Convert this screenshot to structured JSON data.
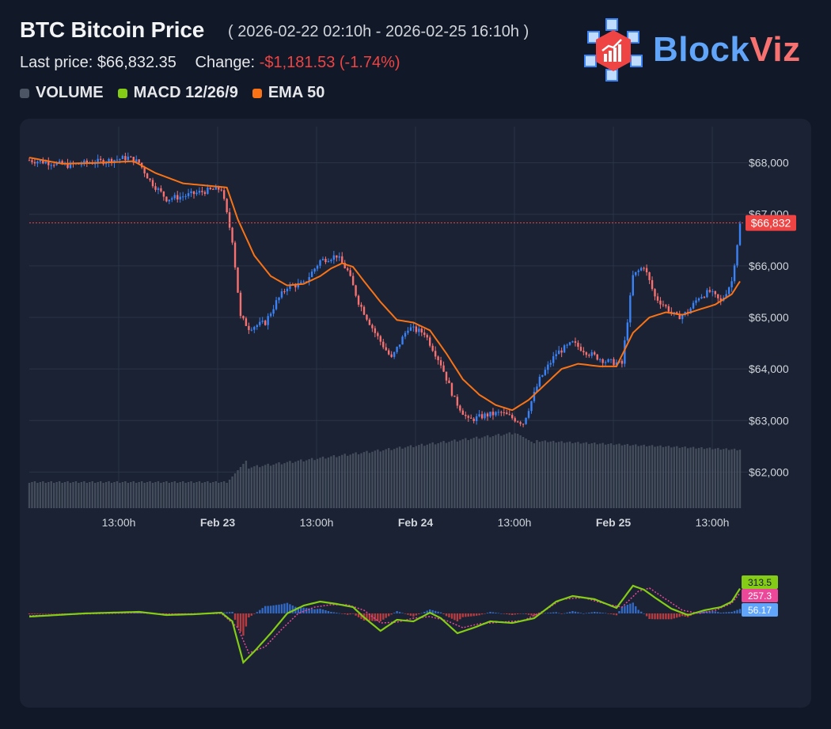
{
  "header": {
    "title": "BTC Bitcoin Price",
    "range": "( 2026-02-22 02:10h - 2026-02-25 16:10h )",
    "last_price_label": "Last price:",
    "last_price": "$66,832.35",
    "change_label": "Change:",
    "change_value": "-$1,181.53 (-1.74%)"
  },
  "legend": [
    {
      "label": "VOLUME",
      "color": "#4b5563"
    },
    {
      "label": "MACD 12/26/9",
      "color": "#84cc16"
    },
    {
      "label": "EMA 50",
      "color": "#f97316"
    }
  ],
  "logo": {
    "part1": "Block",
    "part2": "Viz"
  },
  "chart_data": [
    {
      "type": "candlestick",
      "title": "BTC Bitcoin Price",
      "y_ticks": [
        "$68,000",
        "$67,000",
        "$66,000",
        "$65,000",
        "$64,000",
        "$63,000",
        "$62,000"
      ],
      "y_tick_values": [
        68000,
        67000,
        66000,
        65000,
        64000,
        63000,
        62000
      ],
      "ylim": [
        61300,
        68700
      ],
      "x_ticks": [
        "13:00h",
        "Feb 23",
        "13:00h",
        "Feb 24",
        "13:00h",
        "Feb 25",
        "13:00h"
      ],
      "x_ticks_bold": [
        false,
        true,
        false,
        true,
        false,
        true,
        false
      ],
      "last_price_tag": "$66,832",
      "last_price_value": 66832,
      "close_points": [
        [
          0,
          68050
        ],
        [
          8,
          68000
        ],
        [
          14,
          67950
        ],
        [
          22,
          68000
        ],
        [
          30,
          68050
        ],
        [
          36,
          68100
        ],
        [
          40,
          68000
        ],
        [
          44,
          67650
        ],
        [
          50,
          67300
        ],
        [
          56,
          67350
        ],
        [
          64,
          67450
        ],
        [
          70,
          67500
        ],
        [
          74,
          66500
        ],
        [
          77,
          65000
        ],
        [
          80,
          64800
        ],
        [
          86,
          64900
        ],
        [
          90,
          65300
        ],
        [
          94,
          65600
        ],
        [
          100,
          65650
        ],
        [
          106,
          66100
        ],
        [
          112,
          66200
        ],
        [
          116,
          65900
        ],
        [
          120,
          65300
        ],
        [
          126,
          64700
        ],
        [
          132,
          64200
        ],
        [
          138,
          64800
        ],
        [
          144,
          64700
        ],
        [
          150,
          64100
        ],
        [
          155,
          63400
        ],
        [
          160,
          63000
        ],
        [
          166,
          63100
        ],
        [
          172,
          63150
        ],
        [
          176,
          63050
        ],
        [
          180,
          62950
        ],
        [
          186,
          63800
        ],
        [
          192,
          64300
        ],
        [
          198,
          64500
        ],
        [
          204,
          64300
        ],
        [
          210,
          64150
        ],
        [
          216,
          64100
        ],
        [
          220,
          65800
        ],
        [
          224,
          66000
        ],
        [
          228,
          65400
        ],
        [
          232,
          65200
        ],
        [
          236,
          65000
        ],
        [
          240,
          65100
        ],
        [
          244,
          65400
        ],
        [
          248,
          65500
        ],
        [
          252,
          65300
        ],
        [
          256,
          65700
        ],
        [
          259,
          66800
        ]
      ],
      "ema_points": [
        [
          0,
          68100
        ],
        [
          12,
          67980
        ],
        [
          26,
          68000
        ],
        [
          38,
          68030
        ],
        [
          46,
          67800
        ],
        [
          56,
          67600
        ],
        [
          66,
          67550
        ],
        [
          72,
          67520
        ],
        [
          76,
          66900
        ],
        [
          82,
          66200
        ],
        [
          88,
          65800
        ],
        [
          94,
          65620
        ],
        [
          100,
          65650
        ],
        [
          106,
          65800
        ],
        [
          110,
          65950
        ],
        [
          114,
          66050
        ],
        [
          118,
          65980
        ],
        [
          122,
          65700
        ],
        [
          128,
          65300
        ],
        [
          134,
          64950
        ],
        [
          140,
          64900
        ],
        [
          146,
          64750
        ],
        [
          152,
          64300
        ],
        [
          158,
          63800
        ],
        [
          164,
          63500
        ],
        [
          170,
          63300
        ],
        [
          176,
          63200
        ],
        [
          182,
          63400
        ],
        [
          188,
          63700
        ],
        [
          194,
          64000
        ],
        [
          200,
          64100
        ],
        [
          208,
          64050
        ],
        [
          214,
          64050
        ],
        [
          220,
          64700
        ],
        [
          226,
          65000
        ],
        [
          232,
          65100
        ],
        [
          238,
          65050
        ],
        [
          244,
          65150
        ],
        [
          250,
          65250
        ],
        [
          256,
          65450
        ],
        [
          259,
          65700
        ]
      ],
      "volume_series": "relative heights, low before Feb 23, rising to a peak before Feb 24, then gently declining"
    },
    {
      "type": "line",
      "title": "MACD 12/26/9",
      "macd_label": "313.5",
      "signal_label": "257.3",
      "hist_label": "56.17",
      "macd_color": "#84cc16",
      "signal_color": "#ec4899",
      "hist_color": "#60a5fa",
      "macd_points": [
        [
          0,
          -40
        ],
        [
          20,
          0
        ],
        [
          40,
          20
        ],
        [
          50,
          -20
        ],
        [
          60,
          -10
        ],
        [
          70,
          10
        ],
        [
          74,
          -100
        ],
        [
          78,
          -620
        ],
        [
          82,
          -480
        ],
        [
          88,
          -250
        ],
        [
          94,
          0
        ],
        [
          100,
          100
        ],
        [
          106,
          150
        ],
        [
          112,
          120
        ],
        [
          118,
          80
        ],
        [
          122,
          -50
        ],
        [
          128,
          -220
        ],
        [
          134,
          -80
        ],
        [
          140,
          -100
        ],
        [
          146,
          10
        ],
        [
          150,
          -60
        ],
        [
          156,
          -250
        ],
        [
          162,
          -180
        ],
        [
          168,
          -100
        ],
        [
          176,
          -120
        ],
        [
          184,
          -60
        ],
        [
          192,
          150
        ],
        [
          198,
          220
        ],
        [
          206,
          180
        ],
        [
          214,
          70
        ],
        [
          220,
          350
        ],
        [
          224,
          300
        ],
        [
          228,
          200
        ],
        [
          234,
          60
        ],
        [
          240,
          -20
        ],
        [
          246,
          40
        ],
        [
          252,
          80
        ],
        [
          256,
          150
        ],
        [
          259,
          313.5
        ]
      ],
      "signal_points": [
        [
          0,
          -30
        ],
        [
          20,
          -5
        ],
        [
          40,
          10
        ],
        [
          50,
          -10
        ],
        [
          60,
          -5
        ],
        [
          70,
          0
        ],
        [
          76,
          -180
        ],
        [
          80,
          -500
        ],
        [
          86,
          -420
        ],
        [
          92,
          -200
        ],
        [
          98,
          0
        ],
        [
          104,
          80
        ],
        [
          110,
          110
        ],
        [
          116,
          110
        ],
        [
          122,
          40
        ],
        [
          128,
          -120
        ],
        [
          134,
          -110
        ],
        [
          140,
          -60
        ],
        [
          146,
          -40
        ],
        [
          152,
          -90
        ],
        [
          158,
          -180
        ],
        [
          164,
          -130
        ],
        [
          172,
          -110
        ],
        [
          180,
          -90
        ],
        [
          188,
          40
        ],
        [
          194,
          180
        ],
        [
          202,
          200
        ],
        [
          210,
          120
        ],
        [
          216,
          80
        ],
        [
          222,
          280
        ],
        [
          226,
          320
        ],
        [
          232,
          180
        ],
        [
          238,
          40
        ],
        [
          244,
          0
        ],
        [
          250,
          40
        ],
        [
          256,
          130
        ],
        [
          259,
          257.3
        ]
      ]
    }
  ]
}
